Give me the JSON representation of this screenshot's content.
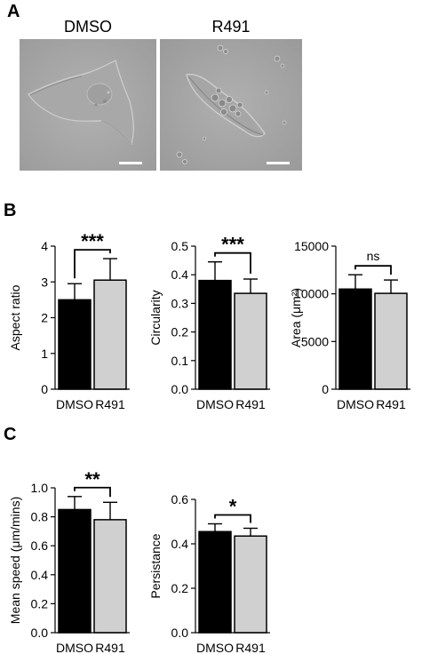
{
  "panels": {
    "A": {
      "letter": "A",
      "images": [
        {
          "label": "DMSO"
        },
        {
          "label": "R491"
        }
      ]
    },
    "B": {
      "letter": "B"
    },
    "C": {
      "letter": "C"
    }
  },
  "chart_data": [
    {
      "type": "bar",
      "panel": "B",
      "categories": [
        "DMSO",
        "R491"
      ],
      "values": [
        2.5,
        3.05
      ],
      "errors": [
        0.45,
        0.6
      ],
      "ylabel": "Aspect ratio",
      "ylim": [
        0,
        4
      ],
      "yticks": [
        "0",
        "1",
        "2",
        "3",
        "4"
      ],
      "significance": "***",
      "bar_colors": [
        "#000000",
        "#d0d0d0"
      ]
    },
    {
      "type": "bar",
      "panel": "B",
      "categories": [
        "DMSO",
        "R491"
      ],
      "values": [
        0.38,
        0.335
      ],
      "errors": [
        0.065,
        0.05
      ],
      "ylabel": "Circularity",
      "ylim": [
        0,
        0.5
      ],
      "yticks": [
        "0.0",
        "0.1",
        "0.2",
        "0.3",
        "0.4",
        "0.5"
      ],
      "significance": "***",
      "bar_colors": [
        "#000000",
        "#d0d0d0"
      ]
    },
    {
      "type": "bar",
      "panel": "B",
      "categories": [
        "DMSO",
        "R491"
      ],
      "values": [
        10500,
        10050
      ],
      "errors": [
        1500,
        1400
      ],
      "ylabel": "Area (μm²)",
      "ylim": [
        0,
        15000
      ],
      "yticks": [
        "0",
        "5000",
        "10000",
        "15000"
      ],
      "significance": "ns",
      "bar_colors": [
        "#000000",
        "#d0d0d0"
      ]
    },
    {
      "type": "bar",
      "panel": "C",
      "categories": [
        "DMSO",
        "R491"
      ],
      "values": [
        0.85,
        0.78
      ],
      "errors": [
        0.09,
        0.12
      ],
      "ylabel": "Mean speed (μm/mins)",
      "ylim": [
        0,
        1.0
      ],
      "yticks": [
        "0.0",
        "0.2",
        "0.4",
        "0.6",
        "0.8",
        "1.0"
      ],
      "significance": "**",
      "bar_colors": [
        "#000000",
        "#d0d0d0"
      ]
    },
    {
      "type": "bar",
      "panel": "C",
      "categories": [
        "DMSO",
        "R491"
      ],
      "values": [
        0.455,
        0.435
      ],
      "errors": [
        0.035,
        0.035
      ],
      "ylabel": "Persistance",
      "ylim": [
        0,
        0.6
      ],
      "yticks": [
        "0.0",
        "0.2",
        "0.4",
        "0.6"
      ],
      "significance": "*",
      "bar_colors": [
        "#000000",
        "#d0d0d0"
      ]
    }
  ]
}
